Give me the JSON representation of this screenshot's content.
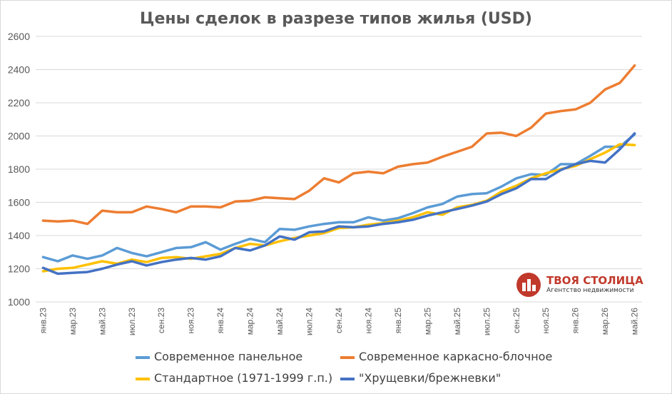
{
  "chart_data": {
    "type": "line",
    "title": "Цены сделок в разрезе типов жилья (USD)",
    "xlabel": "",
    "ylabel": "",
    "ylim": [
      1000,
      2600
    ],
    "yticks": [
      1000,
      1200,
      1400,
      1600,
      1800,
      2000,
      2200,
      2400,
      2600
    ],
    "grid": true,
    "legend_position": "bottom",
    "x": [
      "янв.23",
      "фев.23",
      "мар.23",
      "апр.23",
      "май.23",
      "июн.23",
      "июл.23",
      "авг.23",
      "сен.23",
      "окт.23",
      "ноя.23",
      "дек.23",
      "янв.24",
      "фев.24",
      "мар.24",
      "апр.24",
      "май.24",
      "июн.24",
      "июл.24",
      "авг.24",
      "сен.24",
      "окт.24",
      "ноя.24",
      "дек.24",
      "янв.25",
      "фев.25",
      "мар.25",
      "апр.25",
      "май.25",
      "июн.25",
      "июл.25",
      "авг.25",
      "сен.25",
      "окт.25",
      "ноя.25",
      "дек.25",
      "янв.26",
      "фев.26",
      "мар.26",
      "апр.26",
      "май.26"
    ],
    "xtick_labels": [
      "янв.23",
      "мар.23",
      "май.23",
      "июл.23",
      "сен.23",
      "ноя.23",
      "янв.24",
      "мар.24",
      "май.24",
      "июл.24",
      "сен.24",
      "ноя.24",
      "янв.25",
      "мар.25",
      "май.25",
      "июл.25",
      "сен.25",
      "ноя.25",
      "янв.26",
      "мар.26",
      "май.26"
    ],
    "series": [
      {
        "name": "Современное панельное",
        "color": "#5b9bd5",
        "values": [
          1270,
          1245,
          1280,
          1260,
          1280,
          1325,
          1295,
          1275,
          1300,
          1325,
          1330,
          1360,
          1315,
          1350,
          1380,
          1360,
          1440,
          1435,
          1455,
          1470,
          1480,
          1480,
          1510,
          1490,
          1505,
          1535,
          1570,
          1590,
          1635,
          1650,
          1655,
          1695,
          1745,
          1770,
          1765,
          1830,
          1830,
          1880,
          1935,
          1935,
          2010
        ]
      },
      {
        "name": "Современное каркасно-блочное",
        "color": "#ed7d31",
        "values": [
          1490,
          1485,
          1490,
          1470,
          1550,
          1540,
          1540,
          1575,
          1560,
          1540,
          1575,
          1575,
          1570,
          1605,
          1610,
          1630,
          1625,
          1620,
          1670,
          1745,
          1720,
          1775,
          1785,
          1775,
          1815,
          1830,
          1840,
          1875,
          1905,
          1935,
          2015,
          2020,
          2000,
          2050,
          2135,
          2150,
          2160,
          2200,
          2280,
          2320,
          2425
        ]
      },
      {
        "name": "Стандартное (1971-1999 г.п.)",
        "color": "#ffc000",
        "values": [
          1185,
          1200,
          1205,
          1225,
          1245,
          1230,
          1255,
          1240,
          1265,
          1270,
          1260,
          1275,
          1290,
          1325,
          1350,
          1340,
          1365,
          1385,
          1400,
          1415,
          1445,
          1450,
          1465,
          1475,
          1490,
          1510,
          1540,
          1525,
          1570,
          1585,
          1610,
          1665,
          1700,
          1745,
          1775,
          1800,
          1820,
          1860,
          1900,
          1950,
          1945
        ]
      },
      {
        "name": "\"Хрущевки/брежневки\"",
        "color": "#4472c4",
        "values": [
          1205,
          1170,
          1175,
          1180,
          1200,
          1225,
          1245,
          1220,
          1240,
          1255,
          1265,
          1255,
          1275,
          1325,
          1310,
          1340,
          1395,
          1375,
          1420,
          1425,
          1455,
          1450,
          1455,
          1470,
          1480,
          1495,
          1520,
          1540,
          1560,
          1580,
          1605,
          1650,
          1685,
          1740,
          1740,
          1795,
          1830,
          1850,
          1840,
          1920,
          2015
        ]
      }
    ]
  },
  "logo": {
    "name": "ТВОЯ СТОЛИЦА",
    "subtitle": "Агентство недвижимости"
  }
}
